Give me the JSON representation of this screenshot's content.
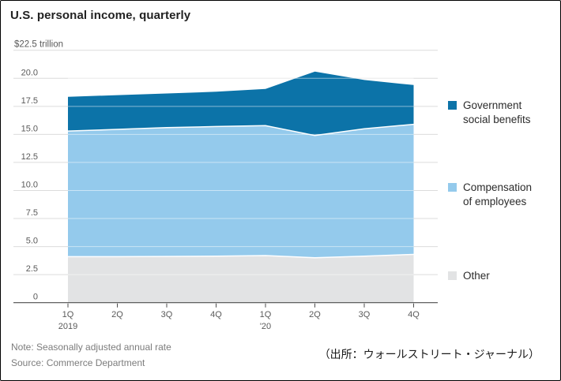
{
  "title": "U.S. personal income, quarterly",
  "notes": {
    "note": "Note: Seasonally adjusted annual rate",
    "source": "Source: Commerce Department",
    "attribution_jp": "（出所：ウォールストリート・ジャーナル）"
  },
  "legend": {
    "items": [
      {
        "line1": "Government",
        "line2": "social benefits",
        "color": "#0c73a8"
      },
      {
        "line1": "Compensation",
        "line2": "of employees",
        "color": "#94caec"
      },
      {
        "line1": "Other",
        "line2": "",
        "color": "#e2e3e4"
      }
    ]
  },
  "chart_data": {
    "type": "area",
    "stacked": true,
    "title": "U.S. personal income, quarterly",
    "unit": "trillions of US dollars, seasonally adjusted annual rate",
    "grid": true,
    "legend_position": "right",
    "ylim": [
      0,
      22.5
    ],
    "y_ticks": [
      0,
      2.5,
      5.0,
      7.5,
      10.0,
      12.5,
      15.0,
      17.5,
      20.0,
      22.5
    ],
    "y_tick_labels": [
      "0",
      "2.5",
      "5.0",
      "7.5",
      "10.0",
      "12.5",
      "15.0",
      "17.5",
      "20.0",
      "$22.5 trillion"
    ],
    "categories": [
      "1Q 2019",
      "2Q 2019",
      "3Q 2019",
      "4Q 2019",
      "1Q 2020",
      "2Q 2020",
      "3Q 2020",
      "4Q 2020"
    ],
    "x_tick_labels": [
      [
        "1Q",
        "2019"
      ],
      [
        "2Q"
      ],
      [
        "3Q"
      ],
      [
        "4Q"
      ],
      [
        "1Q",
        "'20"
      ],
      [
        "2Q"
      ],
      [
        "3Q"
      ],
      [
        "4Q"
      ]
    ],
    "series": [
      {
        "name": "Other",
        "color": "#e2e3e4",
        "values": [
          4.1,
          4.1,
          4.12,
          4.15,
          4.2,
          4.0,
          4.15,
          4.3
        ]
      },
      {
        "name": "Compensation of employees",
        "color": "#94caec",
        "values": [
          11.2,
          11.35,
          11.48,
          11.55,
          11.58,
          10.9,
          11.35,
          11.6
        ]
      },
      {
        "name": "Government social benefits",
        "color": "#0c73a8",
        "values": [
          3.05,
          3.05,
          3.05,
          3.1,
          3.27,
          5.7,
          4.35,
          3.5
        ]
      }
    ],
    "stacked_totals": [
      18.35,
      18.5,
      18.65,
      18.8,
      19.05,
      20.6,
      19.85,
      19.4
    ]
  }
}
